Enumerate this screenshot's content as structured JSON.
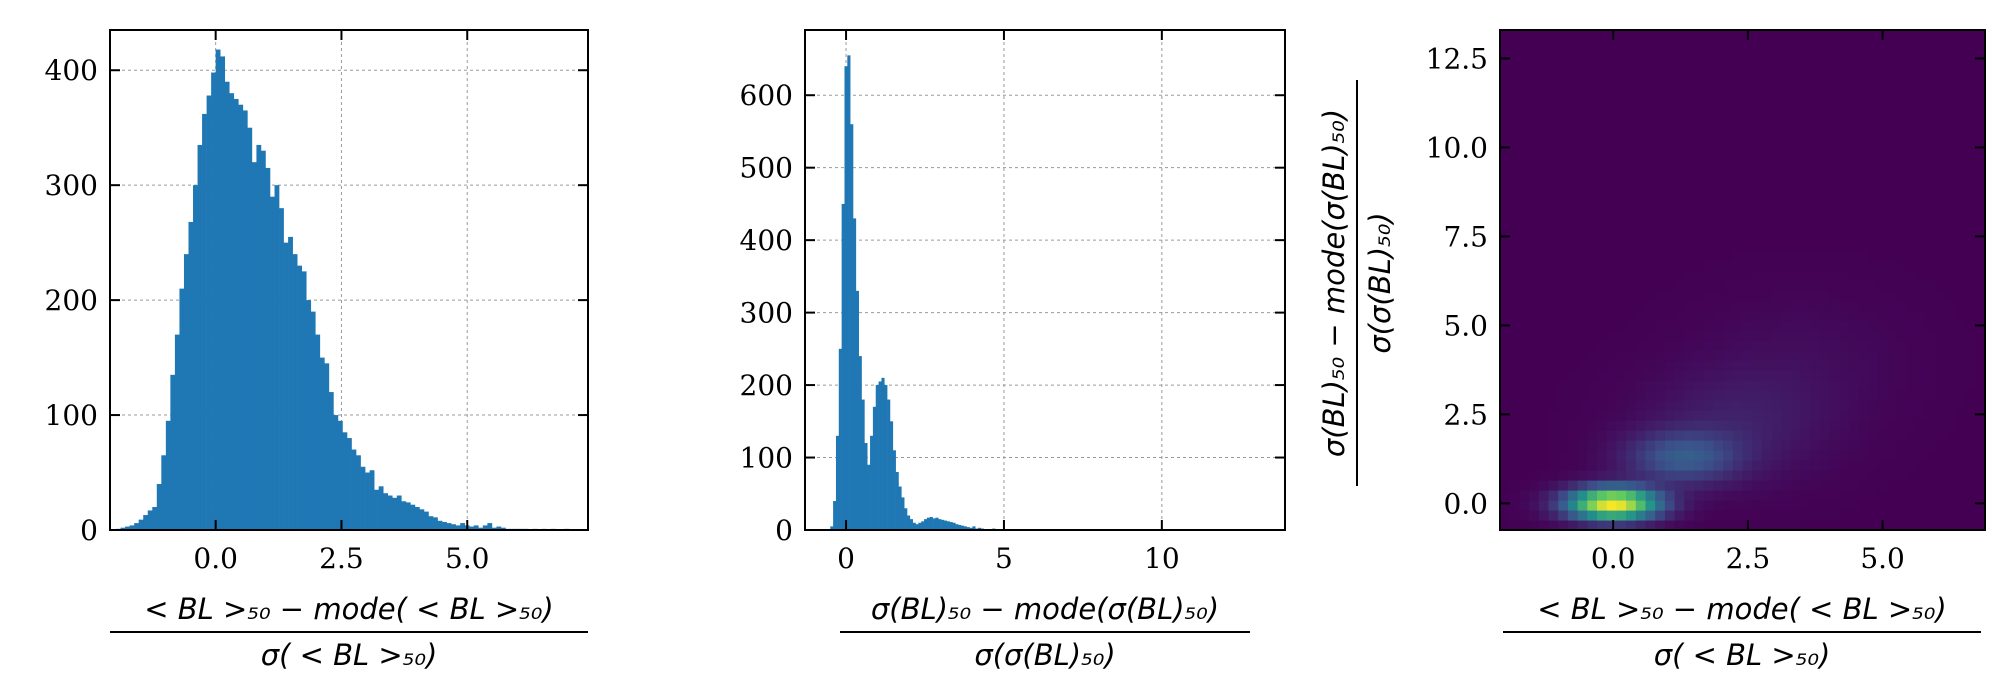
{
  "colors": {
    "bar": "#1f77b4",
    "grid": "#9a9a9a",
    "heat_low": "#440154",
    "heat_high": "#fde725"
  },
  "chart_data": [
    {
      "type": "bar",
      "grid": true,
      "xlim": [
        -2.1,
        7.4
      ],
      "ylim": [
        0,
        435
      ],
      "x_ticks": [
        0.0,
        2.5,
        5.0
      ],
      "x_tick_labels": [
        "0.0",
        "2.5",
        "5.0"
      ],
      "y_ticks": [
        0,
        100,
        200,
        300,
        400
      ],
      "y_tick_labels": [
        "0",
        "100",
        "200",
        "300",
        "400"
      ],
      "xlabel": {
        "numerator": "< BL >₅₀ − mode( < BL >₅₀)",
        "denominator": "σ( < BL >₅₀)"
      },
      "ylabel": "",
      "bin_width": 0.09,
      "x": [
        -1.98,
        -1.89,
        -1.8,
        -1.71,
        -1.62,
        -1.53,
        -1.44,
        -1.35,
        -1.26,
        -1.17,
        -1.08,
        -0.99,
        -0.9,
        -0.81,
        -0.72,
        -0.63,
        -0.54,
        -0.45,
        -0.36,
        -0.27,
        -0.18,
        -0.09,
        0.0,
        0.09,
        0.18,
        0.27,
        0.36,
        0.45,
        0.54,
        0.63,
        0.72,
        0.81,
        0.9,
        0.99,
        1.08,
        1.17,
        1.26,
        1.35,
        1.44,
        1.53,
        1.62,
        1.71,
        1.8,
        1.89,
        1.98,
        2.07,
        2.16,
        2.25,
        2.34,
        2.43,
        2.52,
        2.61,
        2.7,
        2.79,
        2.88,
        2.97,
        3.06,
        3.15,
        3.24,
        3.33,
        3.42,
        3.51,
        3.6,
        3.69,
        3.78,
        3.87,
        3.96,
        4.05,
        4.14,
        4.23,
        4.32,
        4.41,
        4.5,
        4.59,
        4.68,
        4.77,
        4.86,
        4.95,
        5.04,
        5.13,
        5.22,
        5.31,
        5.4,
        5.49,
        5.58,
        5.67,
        5.76,
        5.85,
        5.94,
        6.03,
        6.12,
        6.21,
        6.3,
        6.39,
        6.48,
        6.57,
        6.66,
        6.75,
        6.84,
        6.93
      ],
      "values": [
        1,
        2,
        3,
        4,
        6,
        9,
        13,
        17,
        20,
        40,
        65,
        95,
        135,
        170,
        210,
        240,
        268,
        300,
        335,
        362,
        378,
        398,
        418,
        412,
        390,
        380,
        375,
        370,
        365,
        350,
        320,
        335,
        330,
        315,
        290,
        300,
        280,
        250,
        255,
        240,
        230,
        225,
        200,
        190,
        170,
        150,
        145,
        120,
        100,
        95,
        85,
        80,
        70,
        65,
        55,
        50,
        52,
        35,
        38,
        32,
        30,
        28,
        30,
        25,
        24,
        22,
        20,
        18,
        16,
        12,
        11,
        8,
        7,
        6,
        5,
        4,
        6,
        4,
        3,
        4,
        2,
        4,
        6,
        2,
        3,
        2,
        1,
        1,
        1,
        1,
        1,
        0,
        1,
        0,
        1,
        0,
        1,
        0,
        0,
        1
      ]
    },
    {
      "type": "bar",
      "grid": true,
      "xlim": [
        -1.3,
        13.9
      ],
      "ylim": [
        0,
        690
      ],
      "x_ticks": [
        0,
        5,
        10
      ],
      "x_tick_labels": [
        "0",
        "5",
        "10"
      ],
      "y_ticks": [
        0,
        100,
        200,
        300,
        400,
        500,
        600
      ],
      "y_tick_labels": [
        "0",
        "100",
        "200",
        "300",
        "400",
        "500",
        "600"
      ],
      "xlabel": {
        "numerator": "σ(BL)₅₀ − mode(σ(BL)₅₀)",
        "denominator": "σ(σ(BL)₅₀)"
      },
      "ylabel": "",
      "bin_width": 0.09,
      "x": [
        -0.5,
        -0.41,
        -0.32,
        -0.23,
        -0.14,
        -0.05,
        0.04,
        0.13,
        0.22,
        0.31,
        0.4,
        0.49,
        0.58,
        0.67,
        0.76,
        0.85,
        0.94,
        1.03,
        1.12,
        1.21,
        1.3,
        1.39,
        1.48,
        1.57,
        1.66,
        1.75,
        1.84,
        1.93,
        2.02,
        2.11,
        2.2,
        2.29,
        2.38,
        2.47,
        2.56,
        2.65,
        2.74,
        2.83,
        2.92,
        3.01,
        3.1,
        3.19,
        3.28,
        3.37,
        3.46,
        3.55,
        3.64,
        3.73,
        3.82,
        3.91,
        4.0,
        4.09,
        4.18,
        4.27,
        4.36,
        4.45,
        4.54,
        4.63,
        4.72,
        4.81,
        4.9,
        4.99,
        5.08,
        5.17,
        5.26,
        5.35,
        5.44,
        5.53,
        5.62,
        5.71,
        5.8,
        5.89,
        5.98,
        6.07,
        6.16,
        6.25
      ],
      "values": [
        5,
        40,
        130,
        250,
        450,
        640,
        655,
        560,
        430,
        330,
        240,
        180,
        120,
        90,
        130,
        170,
        200,
        205,
        210,
        200,
        180,
        150,
        110,
        80,
        60,
        45,
        30,
        20,
        15,
        10,
        8,
        10,
        12,
        15,
        17,
        18,
        16,
        17,
        15,
        14,
        13,
        12,
        11,
        10,
        8,
        7,
        6,
        5,
        4,
        3,
        5,
        2,
        3,
        2,
        1,
        1,
        1,
        2,
        1,
        1,
        1,
        0,
        1,
        0,
        1,
        0,
        1,
        0,
        0,
        1,
        0,
        0,
        0,
        1,
        0,
        0
      ]
    },
    {
      "type": "heatmap",
      "grid": false,
      "xlim": [
        -2.1,
        6.9
      ],
      "ylim": [
        -0.75,
        13.3
      ],
      "x_ticks": [
        0.0,
        2.5,
        5.0
      ],
      "x_tick_labels": [
        "0.0",
        "2.5",
        "5.0"
      ],
      "y_ticks": [
        0.0,
        2.5,
        5.0,
        7.5,
        10.0,
        12.5
      ],
      "y_tick_labels": [
        "0.0",
        "2.5",
        "5.0",
        "7.5",
        "10.0",
        "12.5"
      ],
      "xlabel": {
        "numerator": "< BL >₅₀ − mode( < BL >₅₀)",
        "denominator": "σ( < BL >₅₀)"
      },
      "ylabel": {
        "numerator": "σ(BL)₅₀ − mode(σ(BL)₅₀)",
        "denominator": "σ(σ(BL)₅₀)"
      },
      "bins_x": 50,
      "bins_y": 50,
      "colormap": "viridis",
      "density_peaks": [
        {
          "x": 0.0,
          "y": 0.0,
          "sx": 0.55,
          "sy": 0.3,
          "weight": 1.0
        },
        {
          "x": 1.3,
          "y": 1.3,
          "sx": 0.7,
          "sy": 0.5,
          "weight": 0.22
        },
        {
          "x": 2.3,
          "y": 2.3,
          "sx": 1.1,
          "sy": 1.0,
          "weight": 0.06
        },
        {
          "x": 3.5,
          "y": 4.0,
          "sx": 1.2,
          "sy": 1.2,
          "weight": 0.018
        }
      ]
    }
  ]
}
